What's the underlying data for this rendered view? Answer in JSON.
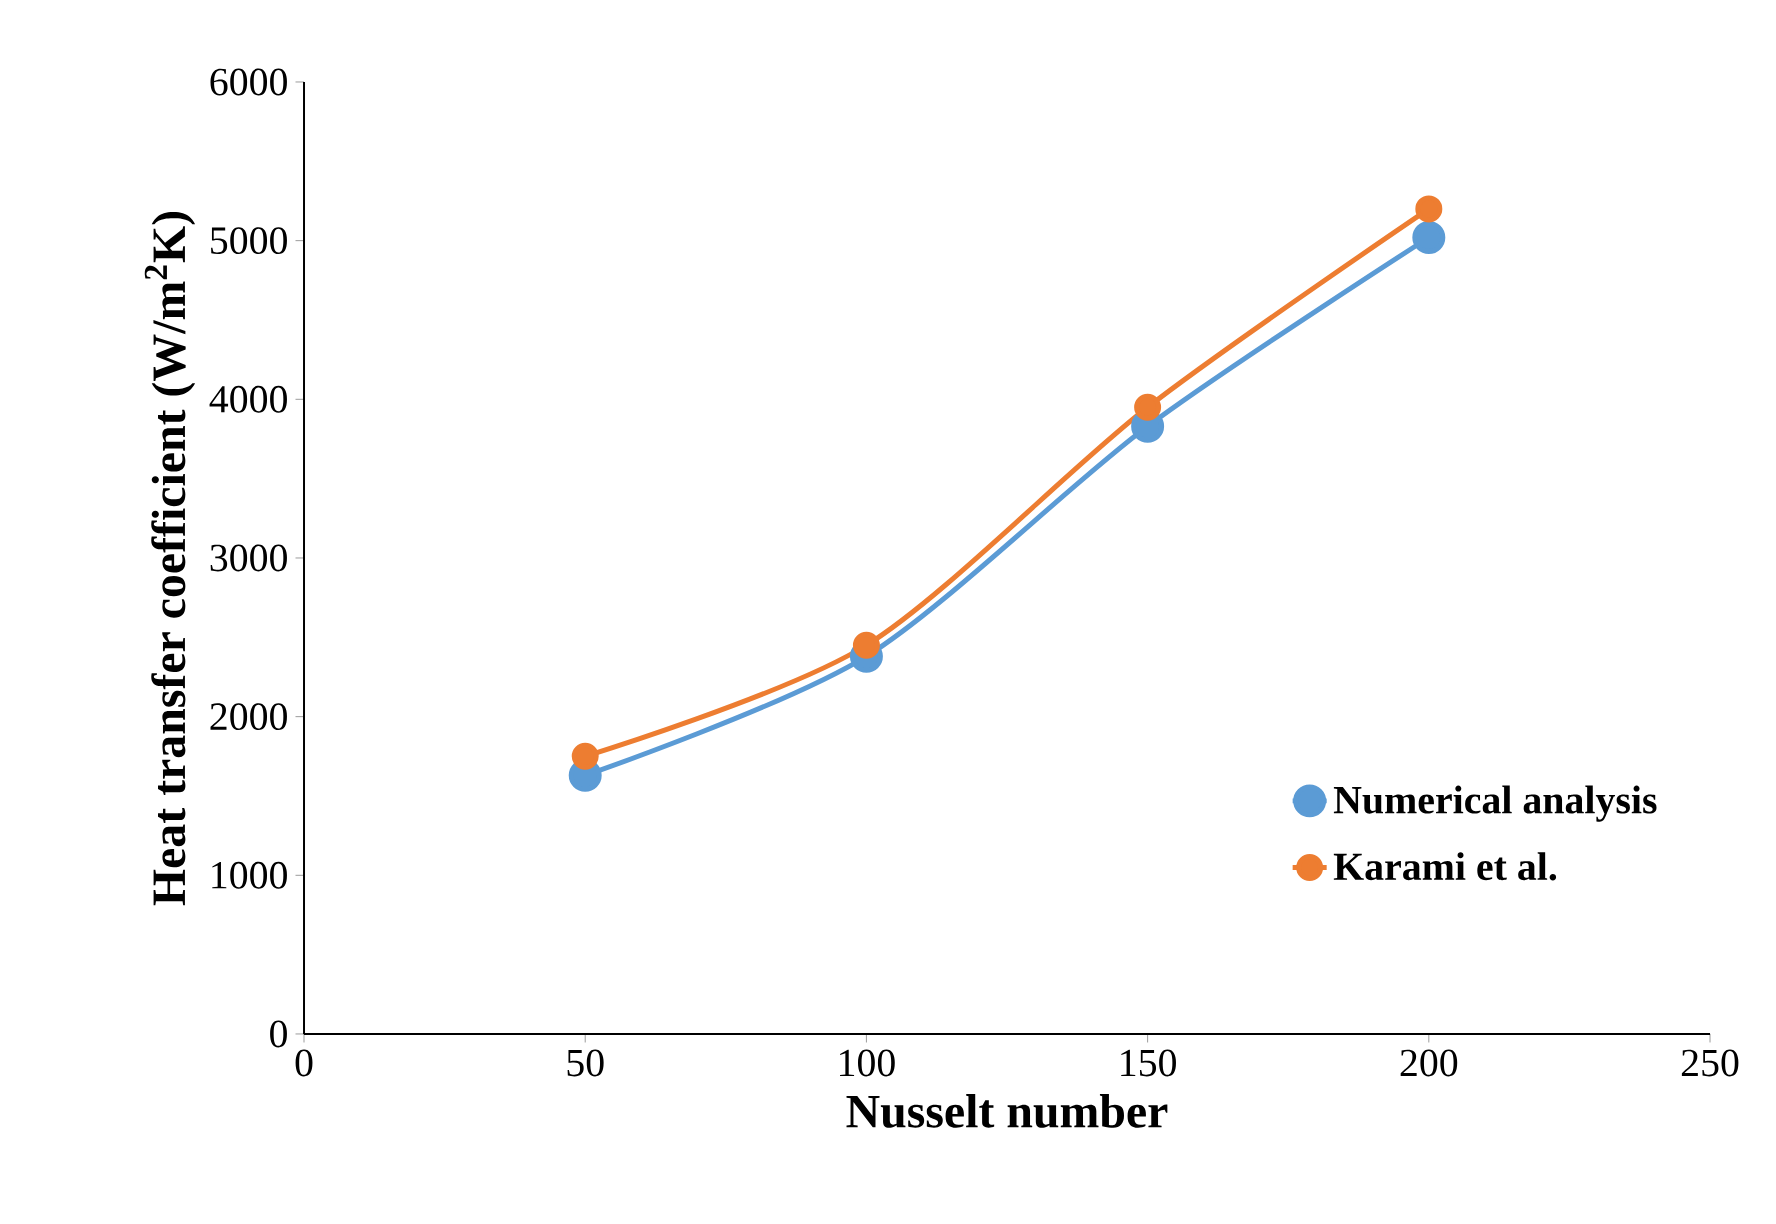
{
  "chart_data": {
    "type": "line",
    "xlabel": "Nusselt number",
    "ylabel": "Heat transfer coefficient (W/m$^{2}$K)",
    "x": [
      50,
      100,
      150,
      200
    ],
    "series": [
      {
        "name": "Numerical analysis",
        "color": "#5b9bd5",
        "values": [
          1630,
          2380,
          3830,
          5020
        ]
      },
      {
        "name": "Karami et al.",
        "color": "#ed7d31",
        "values": [
          1750,
          2450,
          3950,
          5200
        ]
      }
    ],
    "xlim": [
      0,
      250
    ],
    "xticks": [
      0,
      50,
      100,
      150,
      200,
      250
    ],
    "ylim": [
      0,
      6000
    ],
    "yticks": [
      0,
      1000,
      2000,
      3000,
      4000,
      5000,
      6000
    ],
    "grid": false,
    "legend": "bottom right",
    "marker": "circle",
    "line_style": "solid"
  }
}
